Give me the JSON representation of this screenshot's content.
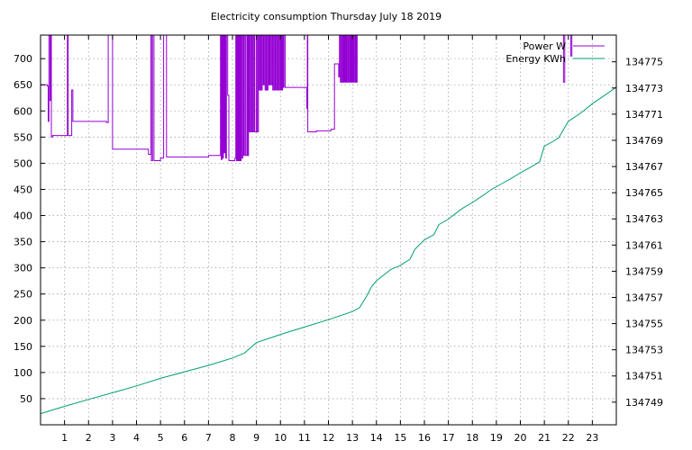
{
  "chart_data": {
    "type": "line",
    "title": "Electricity consumption Thursday July 18 2019",
    "xlabel": "",
    "x_ticks": [
      "1",
      "2",
      "3",
      "4",
      "5",
      "6",
      "7",
      "8",
      "9",
      "10",
      "11",
      "12",
      "13",
      "14",
      "15",
      "16",
      "17",
      "18",
      "19",
      "20",
      "21",
      "22",
      "23"
    ],
    "xlim": [
      0,
      24
    ],
    "y_left": {
      "ticks": [
        "50",
        "100",
        "150",
        "200",
        "250",
        "300",
        "350",
        "400",
        "450",
        "500",
        "550",
        "600",
        "650",
        "700"
      ],
      "ylim": [
        0,
        745
      ]
    },
    "y_right": {
      "ticks": [
        "134749",
        "134751",
        "134753",
        "134755",
        "134757",
        "134759",
        "134761",
        "134763",
        "134765",
        "134767",
        "134769",
        "134771",
        "134773",
        "134775"
      ],
      "ylim": [
        134747.27,
        134777.04
      ]
    },
    "grid": true,
    "legend_position": "top-right",
    "series": [
      {
        "name": "Power W",
        "axis": "left",
        "color": "#9400d3",
        "x": [
          0.0,
          0.1,
          0.28,
          0.32,
          0.35,
          0.4,
          0.42,
          0.45,
          0.5,
          1.1,
          1.12,
          1.15,
          1.25,
          1.3,
          1.35,
          1.4,
          2.0,
          2.75,
          2.78,
          2.82,
          3.0,
          4.0,
          4.5,
          4.53,
          4.55,
          4.6,
          4.62,
          4.67,
          4.7,
          4.73,
          4.78,
          4.82,
          5.0,
          5.1,
          5.13,
          5.2,
          5.25,
          5.5,
          7.0,
          7.45,
          7.5,
          7.53,
          7.56,
          7.6,
          7.62,
          7.65,
          7.68,
          7.72,
          7.75,
          7.8,
          7.85,
          8.0,
          8.1,
          8.14,
          8.17,
          8.2,
          8.22,
          8.25,
          8.27,
          8.3,
          8.33,
          8.36,
          8.4,
          8.43,
          8.47,
          8.5,
          8.55,
          8.6,
          8.63,
          8.67,
          8.7,
          8.74,
          8.78,
          8.82,
          8.86,
          8.9,
          8.93,
          9.0,
          9.04,
          9.08,
          9.12,
          9.16,
          9.2,
          9.24,
          9.28,
          9.32,
          9.36,
          9.4,
          9.44,
          9.48,
          9.52,
          9.56,
          9.6,
          9.64,
          9.68,
          9.72,
          9.76,
          9.8,
          9.84,
          9.88,
          9.92,
          9.96,
          10.0,
          10.03,
          10.06,
          10.09,
          10.12,
          10.15,
          10.2,
          10.5,
          11.0,
          11.1,
          11.12,
          11.14,
          11.16,
          11.2,
          11.5,
          12.0,
          12.1,
          12.2,
          12.25,
          12.35,
          12.4,
          12.43,
          12.46,
          12.5,
          12.53,
          12.56,
          12.6,
          12.63,
          12.66,
          12.7,
          12.73,
          12.76,
          12.8,
          12.83,
          12.86,
          12.9,
          12.93,
          12.96,
          13.0,
          13.03,
          13.06,
          13.1,
          13.13,
          13.16,
          13.2,
          21.8,
          21.85,
          21.9,
          22.0,
          22.1,
          22.15,
          22.2,
          22.25
        ],
        "values": [
          650,
          650,
          648,
          580,
          745,
          620,
          745,
          550,
          553,
          553,
          745,
          553,
          553,
          640,
          580,
          580,
          580,
          578,
          578,
          745,
          527,
          527,
          517,
          517,
          517,
          745,
          505,
          745,
          745,
          505,
          505,
          505,
          510,
          510,
          745,
          745,
          512,
          512,
          515,
          515,
          745,
          507,
          745,
          510,
          745,
          520,
          745,
          510,
          745,
          630,
          505,
          505,
          510,
          745,
          505,
          745,
          505,
          745,
          505,
          745,
          505,
          745,
          510,
          745,
          515,
          745,
          515,
          745,
          515,
          745,
          560,
          745,
          560,
          745,
          560,
          745,
          560,
          745,
          560,
          745,
          640,
          745,
          640,
          745,
          650,
          745,
          640,
          745,
          640,
          745,
          650,
          745,
          650,
          745,
          640,
          745,
          640,
          745,
          640,
          745,
          640,
          745,
          640,
          745,
          640,
          745,
          645,
          745,
          645,
          645,
          645,
          605,
          745,
          560,
          560,
          560,
          562,
          562,
          565,
          565,
          690,
          690,
          690,
          665,
          745,
          655,
          745,
          655,
          745,
          655,
          745,
          655,
          745,
          655,
          745,
          655,
          745,
          655,
          745,
          655,
          745,
          655,
          745,
          655,
          745,
          655,
          745,
          655,
          745,
          745,
          745,
          705,
          745,
          745,
          745
        ]
      },
      {
        "name": "Energy KWh",
        "axis": "right",
        "color": "#009e73",
        "x": [
          0.0,
          1.0,
          2.0,
          3.0,
          4.0,
          5.0,
          6.0,
          7.0,
          8.0,
          8.5,
          9.0,
          10.0,
          11.0,
          12.0,
          13.0,
          13.3,
          13.6,
          13.8,
          14.0,
          14.4,
          14.6,
          15.0,
          15.4,
          15.6,
          16.0,
          16.4,
          16.6,
          17.0,
          17.4,
          17.6,
          18.0,
          18.4,
          18.8,
          19.2,
          19.6,
          20.0,
          20.4,
          20.8,
          21.0,
          21.4,
          21.6,
          22.0,
          22.3,
          22.6,
          23.0,
          23.5,
          24.0
        ],
        "values": [
          134748.12,
          134748.68,
          134749.21,
          134749.72,
          134750.24,
          134750.82,
          134751.32,
          134751.81,
          134752.37,
          134752.75,
          134753.55,
          134754.17,
          134754.74,
          134755.3,
          134755.92,
          134756.22,
          134757.12,
          134757.83,
          134758.27,
          134758.85,
          134759.14,
          134759.45,
          134759.92,
          134760.68,
          134761.4,
          134761.8,
          134762.56,
          134762.98,
          134763.55,
          134763.82,
          134764.25,
          134764.74,
          134765.25,
          134765.66,
          134766.07,
          134766.52,
          134766.92,
          134767.35,
          134768.55,
          134768.96,
          134769.2,
          134770.46,
          134770.81,
          134771.2,
          134771.8,
          134772.42,
          134773.06
        ]
      }
    ]
  }
}
